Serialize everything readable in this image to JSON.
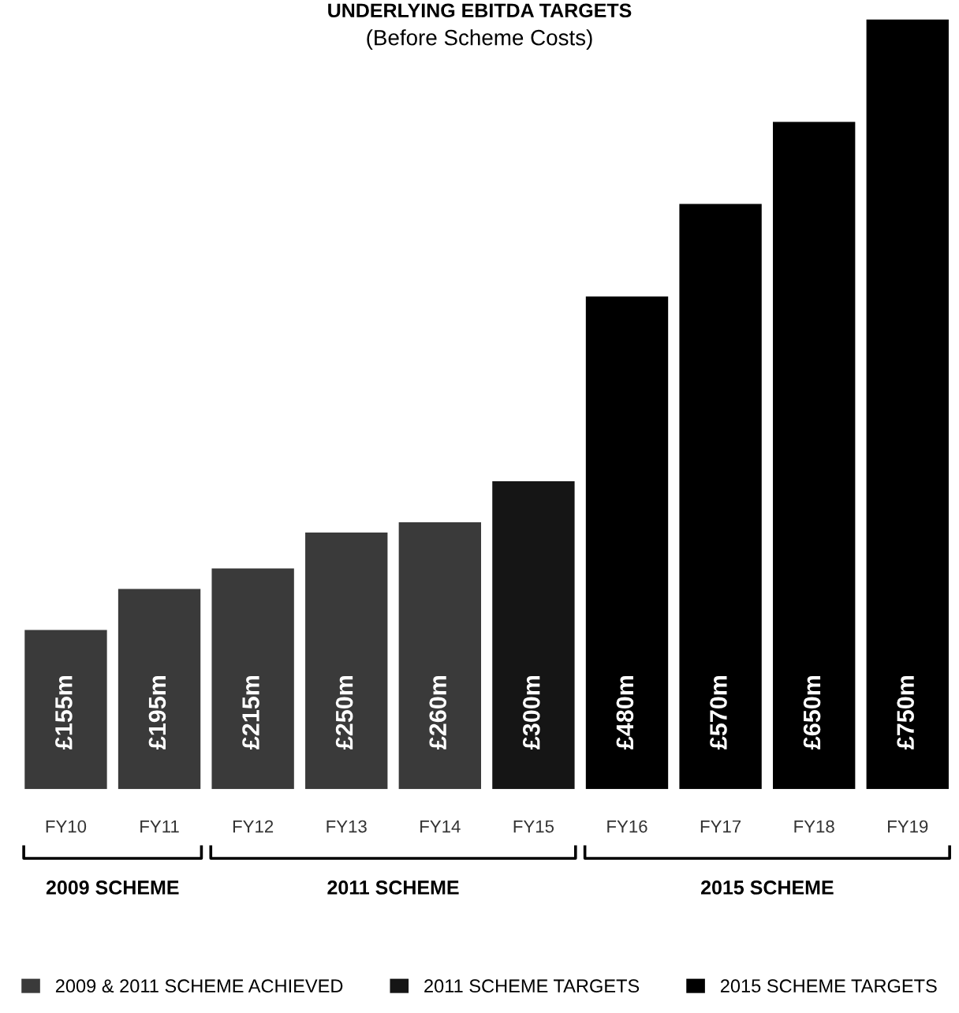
{
  "chart_data": {
    "type": "bar",
    "title": "UNDERLYING EBITDA TARGETS",
    "subtitle": "(Before Scheme Costs)",
    "categories": [
      "FY10",
      "FY11",
      "FY12",
      "FY13",
      "FY14",
      "FY15",
      "FY16",
      "FY17",
      "FY18",
      "FY19"
    ],
    "series": [
      {
        "name": "2009 & 2011 SCHEME ACHIEVED",
        "color": "#3a3a3a",
        "values": [
          155,
          195,
          215,
          250,
          260,
          null,
          null,
          null,
          null,
          null
        ],
        "value_labels": [
          "£155m",
          "£195m",
          "£215m",
          "£250m",
          "£260m",
          null,
          null,
          null,
          null,
          null
        ]
      },
      {
        "name": "2011 SCHEME TARGETS",
        "color": "#151515",
        "values": [
          null,
          null,
          null,
          null,
          null,
          300,
          null,
          null,
          null,
          null
        ],
        "value_labels": [
          null,
          null,
          null,
          null,
          null,
          "£300m",
          null,
          null,
          null,
          null
        ]
      },
      {
        "name": "2015 SCHEME TARGETS",
        "color": "#000000",
        "values": [
          null,
          null,
          null,
          null,
          null,
          null,
          480,
          570,
          650,
          750
        ],
        "value_labels": [
          null,
          null,
          null,
          null,
          null,
          null,
          "£480m",
          "£570m",
          "£650m",
          "£750m"
        ]
      }
    ],
    "annotations": [
      "2009 SCHEME",
      "2011 SCHEME",
      "2015 SCHEME"
    ],
    "legend": "bottom",
    "grid": false
  }
}
